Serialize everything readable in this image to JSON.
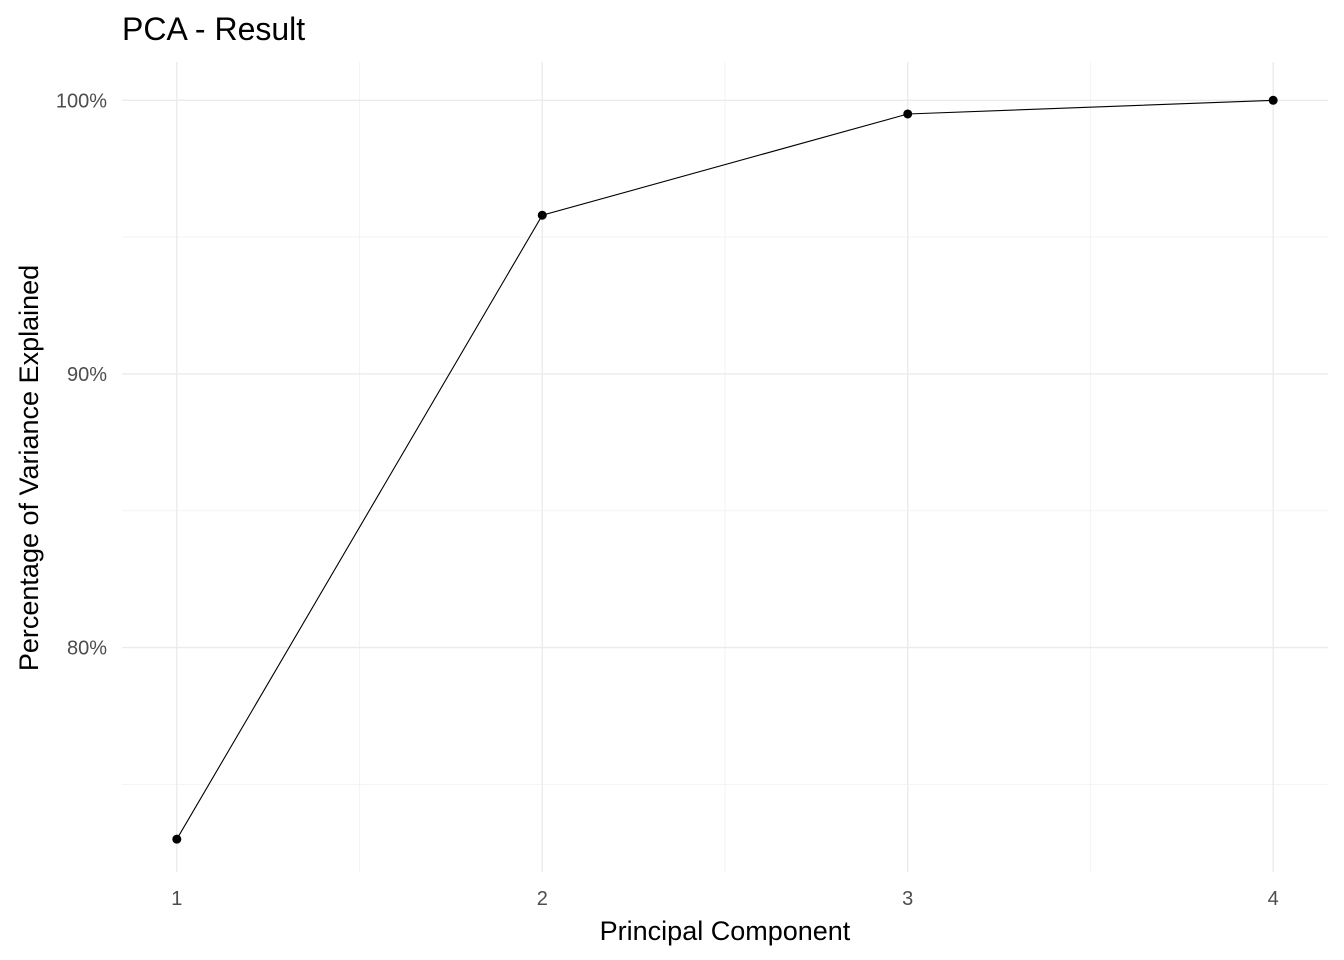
{
  "chart_data": {
    "type": "line",
    "title": "PCA - Result",
    "xlabel": "Principal Component",
    "ylabel": "Percentage of Variance Explained",
    "x": [
      1,
      2,
      3,
      4
    ],
    "x_tick_labels": [
      "1",
      "2",
      "3",
      "4"
    ],
    "xlim": [
      0.85,
      4.15
    ],
    "series": [
      {
        "values": [
          73.0,
          95.8,
          99.5,
          100.0
        ]
      }
    ],
    "y_ticks": [
      80,
      90,
      100
    ],
    "y_tick_labels": [
      "80%",
      "90%",
      "100%"
    ],
    "ylim": [
      71.8,
      101.4
    ],
    "grid": true,
    "legend": "none",
    "colors": {
      "line": "#000000",
      "point": "#000000",
      "grid": "#ebebeb"
    }
  }
}
